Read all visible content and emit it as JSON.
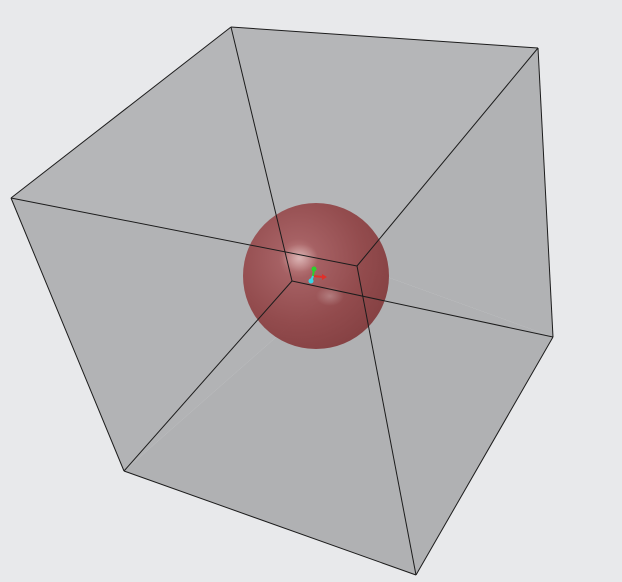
{
  "viewport": {
    "background": "#e8e9eb"
  },
  "cube": {
    "face_color": "#b3b4b6",
    "face_shade_front": "#a9aaac",
    "edge_color": "#1a1a1a",
    "opacity": 0.92
  },
  "sphere": {
    "color": "#8e3d3f",
    "highlight": "#c98a8a",
    "opacity": 0.82
  },
  "axis_triad": {
    "icon": "xyz-axis-triad-icon",
    "x_color": "#e0302a",
    "y_color": "#2bd12b",
    "z_color": "#37d6e6"
  }
}
